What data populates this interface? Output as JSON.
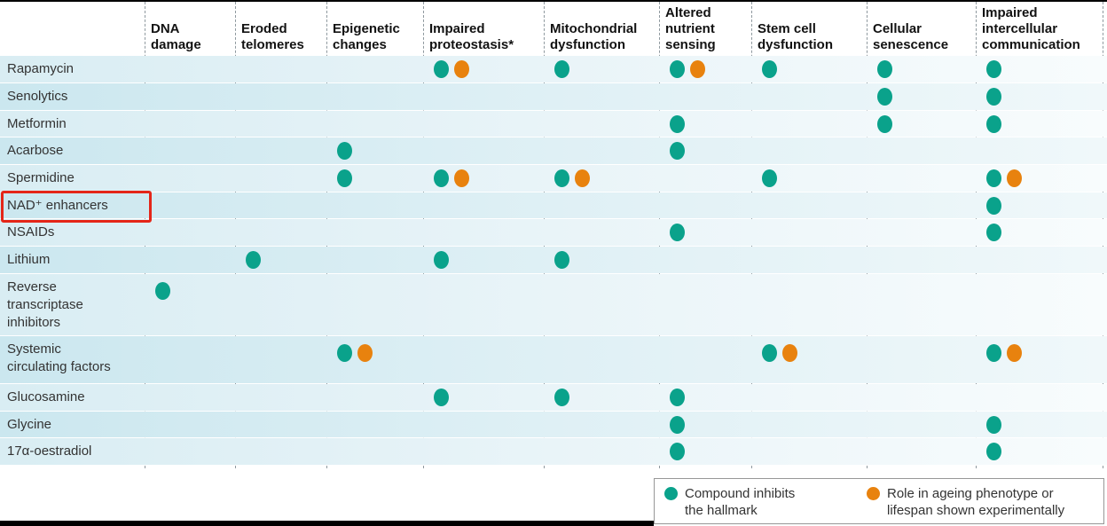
{
  "chart_data": {
    "type": "heatmap",
    "description": "Dot-matrix table of candidate anti-ageing compounds (rows) versus hallmarks of ageing they target (columns)",
    "columns": [
      {
        "id": "dna-damage",
        "label": "DNA\ndamage"
      },
      {
        "id": "eroded-telomeres",
        "label": "Eroded\ntelomeres"
      },
      {
        "id": "epigenetic-changes",
        "label": "Epigenetic\nchanges"
      },
      {
        "id": "impaired-proteostasis",
        "label": "Impaired\nproteostasis*"
      },
      {
        "id": "mitochondrial-dysfunction",
        "label": "Mitochondrial\ndysfunction"
      },
      {
        "id": "altered-nutrient-sensing",
        "label": "Altered\nnutrient\nsensing"
      },
      {
        "id": "stem-cell-dysfunction",
        "label": "Stem cell\ndysfunction"
      },
      {
        "id": "cellular-senescence",
        "label": "Cellular\nsenescence"
      },
      {
        "id": "impaired-intercellular-communication",
        "label": "Impaired\nintercellular\ncommunication"
      }
    ],
    "rows": [
      {
        "label": "Rapamycin",
        "highlighted": false,
        "dots": {
          "impaired-proteostasis": "both",
          "mitochondrial-dysfunction": "inhibits",
          "altered-nutrient-sensing": "both",
          "stem-cell-dysfunction": "inhibits",
          "cellular-senescence": "inhibits",
          "impaired-intercellular-communication": "inhibits"
        }
      },
      {
        "label": "Senolytics",
        "highlighted": false,
        "dots": {
          "cellular-senescence": "inhibits",
          "impaired-intercellular-communication": "inhibits"
        }
      },
      {
        "label": "Metformin",
        "highlighted": false,
        "dots": {
          "altered-nutrient-sensing": "inhibits",
          "cellular-senescence": "inhibits",
          "impaired-intercellular-communication": "inhibits"
        }
      },
      {
        "label": "Acarbose",
        "highlighted": false,
        "dots": {
          "epigenetic-changes": "inhibits",
          "altered-nutrient-sensing": "inhibits"
        }
      },
      {
        "label": "Spermidine",
        "highlighted": false,
        "dots": {
          "epigenetic-changes": "inhibits",
          "impaired-proteostasis": "both",
          "mitochondrial-dysfunction": "both",
          "stem-cell-dysfunction": "inhibits",
          "impaired-intercellular-communication": "both"
        }
      },
      {
        "label": "NAD⁺ enhancers",
        "highlighted": true,
        "dots": {
          "impaired-intercellular-communication": "inhibits"
        }
      },
      {
        "label": "NSAIDs",
        "highlighted": false,
        "dots": {
          "altered-nutrient-sensing": "inhibits",
          "impaired-intercellular-communication": "inhibits"
        }
      },
      {
        "label": "Lithium",
        "highlighted": false,
        "dots": {
          "eroded-telomeres": "inhibits",
          "impaired-proteostasis": "inhibits",
          "mitochondrial-dysfunction": "inhibits"
        }
      },
      {
        "label": "Reverse\ntranscriptase\ninhibitors",
        "highlighted": false,
        "dots": {
          "dna-damage": "inhibits"
        }
      },
      {
        "label": "Systemic\ncirculating factors",
        "highlighted": false,
        "dots": {
          "epigenetic-changes": "both",
          "stem-cell-dysfunction": "both",
          "impaired-intercellular-communication": "both"
        }
      },
      {
        "label": "Glucosamine",
        "highlighted": false,
        "dots": {
          "impaired-proteostasis": "inhibits",
          "mitochondrial-dysfunction": "inhibits",
          "altered-nutrient-sensing": "inhibits"
        }
      },
      {
        "label": "Glycine",
        "highlighted": false,
        "dots": {
          "altered-nutrient-sensing": "inhibits",
          "impaired-intercellular-communication": "inhibits"
        }
      },
      {
        "label": "17α-oestradiol",
        "highlighted": false,
        "dots": {
          "altered-nutrient-sensing": "inhibits",
          "impaired-intercellular-communication": "inhibits"
        }
      }
    ],
    "legend": [
      {
        "id": "inhibits",
        "label": "Compound inhibits\nthe hallmark"
      },
      {
        "id": "experimental",
        "label": "Role in ageing phenotype or\nlifespan shown experimentally"
      }
    ],
    "colors": {
      "inhibits": "#0aa28b",
      "experimental": "#e8820e",
      "highlight_red": "#e42618"
    }
  }
}
